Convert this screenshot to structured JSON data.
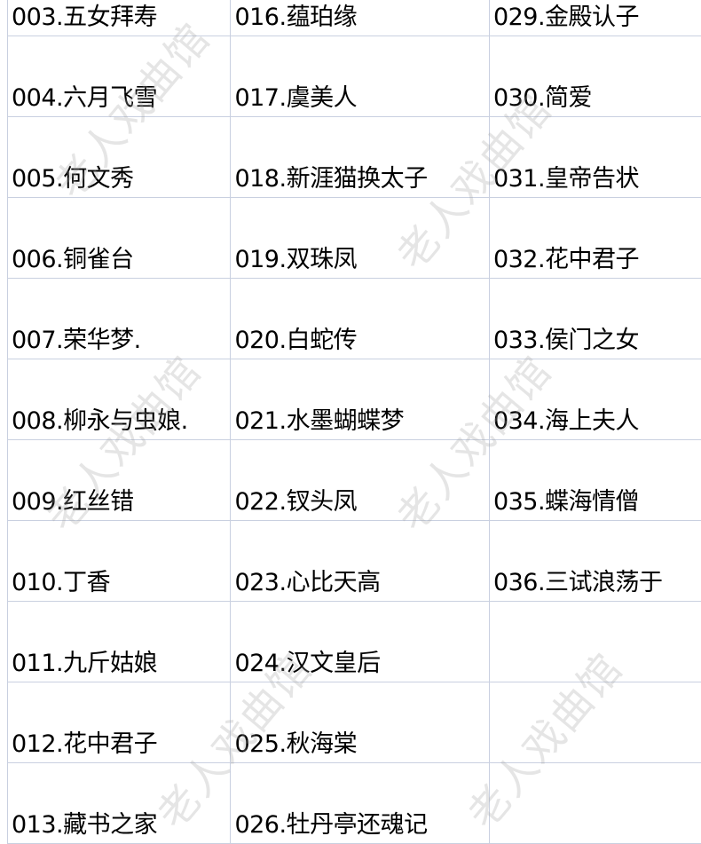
{
  "watermark": "老人戏曲馆",
  "rows": [
    [
      "003.五女拜寿",
      "016.蕴珀缘",
      "029.金殿认子"
    ],
    [
      "004.六月飞雪",
      "017.虞美人",
      "030.简爱"
    ],
    [
      "005.何文秀",
      "018.新涯猫换太子",
      "031.皇帝告状"
    ],
    [
      "006.铜雀台",
      "019.双珠凤",
      "032.花中君子"
    ],
    [
      "007.荣华梦.",
      "020.白蛇传",
      "033.侯门之女"
    ],
    [
      "008.柳永与虫娘.",
      "021.水墨蝴蝶梦",
      "034.海上夫人"
    ],
    [
      "009.红丝错",
      "022.钗头凤",
      "035.蝶海情僧"
    ],
    [
      "010.丁香",
      "023.心比天高",
      "036.三试浪荡于"
    ],
    [
      "011.九斤姑娘",
      "024.汉文皇后",
      ""
    ],
    [
      "012.花中君子",
      "025.秋海棠",
      ""
    ],
    [
      "013.藏书之家",
      "026.牡丹亭还魂记",
      ""
    ]
  ]
}
